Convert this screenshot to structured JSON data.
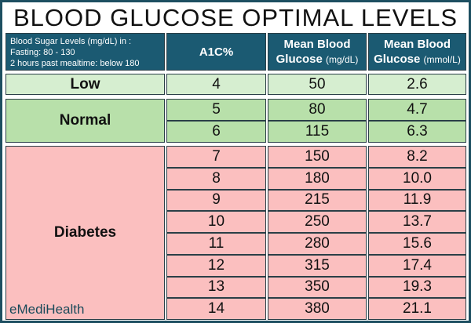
{
  "header": {
    "title": "BLOOD GLUCOSE OPTIMAL LEVELS"
  },
  "table": {
    "header": {
      "info": [
        "Blood Sugar Levels (mg/dL) in :",
        "Fasting: 80 - 130",
        "2 hours past mealtime: below 180"
      ],
      "columns": [
        {
          "main": "A1C%"
        },
        {
          "main": "Mean Blood Glucose",
          "unit": "(mg/dL)"
        },
        {
          "main": "Mean Blood Glucose",
          "unit": "(mmol/L)"
        }
      ]
    },
    "groups": [
      {
        "label": "Low",
        "rows": [
          [
            "4",
            "50",
            "2.6"
          ]
        ]
      },
      {
        "label": "Normal",
        "rows": [
          [
            "5",
            "80",
            "4.7"
          ],
          [
            "6",
            "115",
            "6.3"
          ]
        ]
      },
      {
        "label": "Diabetes",
        "rows": [
          [
            "7",
            "150",
            "8.2"
          ],
          [
            "8",
            "180",
            "10.0"
          ],
          [
            "9",
            "215",
            "11.9"
          ],
          [
            "10",
            "250",
            "13.7"
          ],
          [
            "11",
            "280",
            "15.6"
          ],
          [
            "12",
            "315",
            "17.4"
          ],
          [
            "13",
            "350",
            "19.3"
          ],
          [
            "14",
            "380",
            "21.1"
          ]
        ]
      }
    ]
  },
  "footer": {
    "logo": "eMediHealth"
  }
}
